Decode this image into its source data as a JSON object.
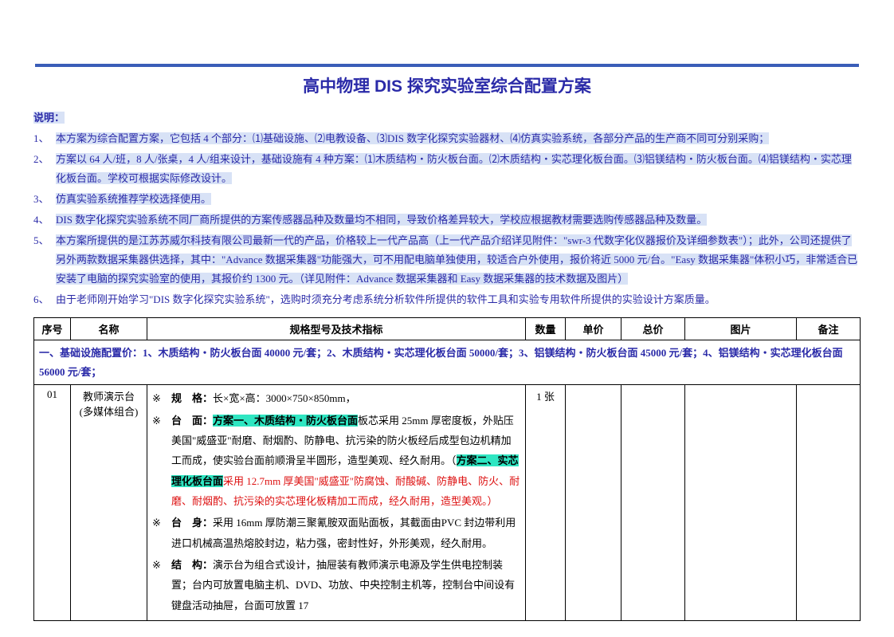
{
  "title": "高中物理 DIS 探究实验室综合配置方案",
  "notes_label": "说明：",
  "notes": [
    {
      "n": "1、",
      "t": "本方案为综合配置方案，它包括 4 个部分：⑴基础设施、⑵电教设备、⑶DIS 数字化探究实验器材、⑷仿真实验系统，各部分产品的生产商不同可分别采购；",
      "hl": true
    },
    {
      "n": "2、",
      "t": "方案以 64 人/班，8 人/张桌，4 人/组来设计，基础设施有 4 种方案：⑴木质结构・防火板台面。⑵木质结构・实芯理化板台面。⑶铝镁结构・防火板台面。⑷铝镁结构・实芯理化板台面。学校可根据实际修改设计。",
      "hl": true
    },
    {
      "n": "3、",
      "t": "仿真实验系统推荐学校选择使用。",
      "hl": true
    },
    {
      "n": "4、",
      "t": "DIS 数字化探究实验系统不同厂商所提供的方案传感器品种及数量均不相同，导致价格差异较大，学校应根据教材需要选购传感器品种及数量。",
      "hl": true
    },
    {
      "n": "5、",
      "t": "本方案所提供的是江苏苏威尔科技有限公司最新一代的产品，价格较上一代产品高（上一代产品介绍详见附件：\"swr-3 代数字化仪器报价及详细参数表\"）；此外，公司还提供了另外两款数据采集器供选择，其中：\"Advance 数据采集器\"功能强大，可不用配电脑单独使用，较适合户外使用，报价将近 5000 元/台。\"Easy 数据采集器\"体积小巧，非常适合已安装了电脑的探究实验室的使用，其报价约 1300 元。（详见附件：Advance 数据采集器和 Easy 数据采集器的技术数据及图片）",
      "hl": true
    },
    {
      "n": "6、",
      "t": "由于老师刚开始学习\"DIS 数字化探究实验系统\"，选购时须充分考虑系统分析软件所提供的软件工具和实验专用软件所提供的实验设计方案质量。",
      "hl": false
    }
  ],
  "headers": {
    "seq": "序号",
    "name": "名称",
    "spec": "规格型号及技术指标",
    "qty": "数量",
    "price": "单价",
    "total": "总价",
    "img": "图片",
    "note": "备注"
  },
  "section_row": "一、基础设施配置价：1、木质结构・防火板台面 40000 元/套；2、木质结构・实芯理化板台面 50000/套；3、铝镁结构・防火板台面 45000 元/套；4、铝镁结构・实芯理化板台面 56000 元/套；",
  "row1": {
    "seq": "01",
    "name": "教师演示台\n(多媒体组合)",
    "qty": "1 张",
    "spec": {
      "s1_label": "规　格：",
      "s1_body": "长×宽×高：3000×750×850mm，",
      "s2_label": "台　面：",
      "s2_hl1": "方案一、木质结构・防火板台面",
      "s2_body1": "板芯采用 25mm 厚密度板，外贴压美国\"威盛亚\"耐磨、耐烟酌、防静电、抗污染的防火板经后成型包边机精加工而成，使实验台面前顺滑呈半圆形，造型美观、经久耐用。（",
      "s2_hl2": "方案二、实芯理化板台面",
      "s2_red": "采用 12.7mm 厚美国\"威盛亚\"防腐蚀、耐酸碱、防静电、防火、耐磨、耐烟酌、抗污染的实芯理化板精加工而成，经久耐用，造型美观。",
      "s2_close": "）",
      "s3_label": "台　身：",
      "s3_body": "采用 16mm 厚防潮三聚氰胺双面贴面板，其截面由PVC 封边带利用进口机械高温热熔胶封边，粘力强，密封性好，外形美观，经久耐用。",
      "s4_label": "结　构：",
      "s4_body": "演示台为组合式设计，抽屉装有教师演示电源及学生供电控制装置；台内可放置电脑主机、DVD、功放、中央控制主机等，控制台中间设有键盘活动抽屉，台面可放置 17"
    }
  },
  "colors": {
    "blue_text": "#2a2aa8",
    "highlight_bg": "#d8e2f6",
    "green_hl": "#2fe6c2",
    "red_text": "#dd1111",
    "bar": "#3a5db8"
  }
}
